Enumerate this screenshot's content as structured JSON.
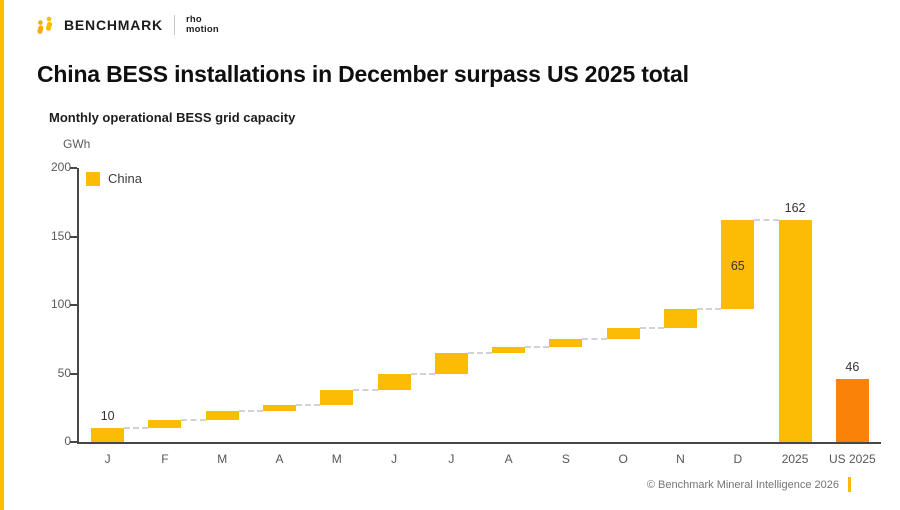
{
  "brand": {
    "name": "BENCHMARK",
    "partner_line1": "rho",
    "partner_line2": "motion"
  },
  "page_title": "China BESS installations in December surpass US 2025 total",
  "chart_data": {
    "type": "waterfall",
    "title": "Monthly operational BESS grid capacity",
    "ylabel": "GWh",
    "ylim": [
      0,
      200
    ],
    "yticks": [
      "0",
      "50",
      "100",
      "150",
      "200"
    ],
    "grid": false,
    "legend": {
      "label": "China",
      "color": "#FCBB05"
    },
    "colors": {
      "china": "#FCBB05",
      "us": "#FA8208",
      "connector": "#d2d2d2"
    },
    "bars": [
      {
        "label": "J",
        "start": 0,
        "end": 10,
        "value_label": "10",
        "label_position": "above",
        "color": "#FCBB05",
        "connect_to_next": true
      },
      {
        "label": "F",
        "start": 10,
        "end": 16,
        "color": "#FCBB05",
        "connect_to_next": true
      },
      {
        "label": "M",
        "start": 16,
        "end": 23,
        "color": "#FCBB05",
        "connect_to_next": true
      },
      {
        "label": "A",
        "start": 23,
        "end": 27,
        "color": "#FCBB05",
        "connect_to_next": true
      },
      {
        "label": "M",
        "start": 27,
        "end": 38,
        "color": "#FCBB05",
        "connect_to_next": true
      },
      {
        "label": "J",
        "start": 38,
        "end": 50,
        "color": "#FCBB05",
        "connect_to_next": true
      },
      {
        "label": "J",
        "start": 50,
        "end": 65,
        "color": "#FCBB05",
        "connect_to_next": true
      },
      {
        "label": "A",
        "start": 65,
        "end": 69,
        "color": "#FCBB05",
        "connect_to_next": true
      },
      {
        "label": "S",
        "start": 69,
        "end": 75,
        "color": "#FCBB05",
        "connect_to_next": true
      },
      {
        "label": "O",
        "start": 75,
        "end": 83,
        "color": "#FCBB05",
        "connect_to_next": true
      },
      {
        "label": "N",
        "start": 83,
        "end": 97,
        "color": "#FCBB05",
        "connect_to_next": true
      },
      {
        "label": "D",
        "start": 97,
        "end": 162,
        "value_label": "65",
        "label_position": "inside",
        "color": "#FCBB05",
        "connect_to_next": true
      },
      {
        "label": "2025",
        "start": 0,
        "end": 162,
        "value_label": "162",
        "label_position": "above",
        "color": "#FCBB05",
        "connect_to_next": false
      },
      {
        "label": "US 2025",
        "start": 0,
        "end": 46,
        "value_label": "46",
        "label_position": "above",
        "color": "#FA8208",
        "connect_to_next": false
      }
    ]
  },
  "footer": {
    "copyright": "© Benchmark Mineral Intelligence 2026"
  }
}
